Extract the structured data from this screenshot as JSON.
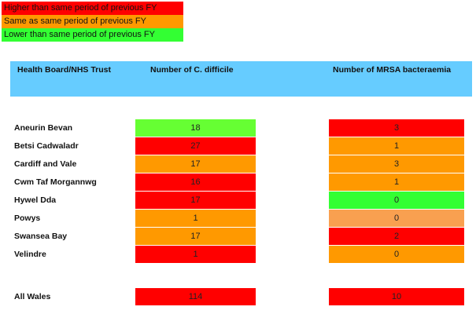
{
  "legend": [
    {
      "label": "Higher than same period of previous FY",
      "color": "#ff0000"
    },
    {
      "label": "Same as same period of previous FY",
      "color": "#ff9900"
    },
    {
      "label": "Lower than same period of previous FY",
      "color": "#33ff33"
    }
  ],
  "table": {
    "headers": [
      "Health Board/NHS Trust",
      "Number of C. difficile",
      "Number of MRSA bacteraemia"
    ],
    "rows": [
      {
        "name": "Aneurin Bevan",
        "cdiff": {
          "value": 18,
          "color": "#66ff33"
        },
        "mrsa": {
          "value": 3,
          "color": "#ff0000"
        }
      },
      {
        "name": "Betsi Cadwaladr",
        "cdiff": {
          "value": 27,
          "color": "#ff0000"
        },
        "mrsa": {
          "value": 1,
          "color": "#ff9900"
        }
      },
      {
        "name": "Cardiff and Vale",
        "cdiff": {
          "value": 17,
          "color": "#ff9900"
        },
        "mrsa": {
          "value": 3,
          "color": "#ff9900"
        }
      },
      {
        "name": "Cwm Taf Morgannwg",
        "cdiff": {
          "value": 16,
          "color": "#ff0000"
        },
        "mrsa": {
          "value": 1,
          "color": "#ff9900"
        }
      },
      {
        "name": "Hywel Dda",
        "cdiff": {
          "value": 17,
          "color": "#ff0000"
        },
        "mrsa": {
          "value": 0,
          "color": "#33ff33"
        }
      },
      {
        "name": "Powys",
        "cdiff": {
          "value": 1,
          "color": "#ff9900"
        },
        "mrsa": {
          "value": 0,
          "color": "#f9a050"
        }
      },
      {
        "name": "Swansea Bay",
        "cdiff": {
          "value": 17,
          "color": "#ff9900"
        },
        "mrsa": {
          "value": 2,
          "color": "#ff0000"
        }
      },
      {
        "name": "Velindre",
        "cdiff": {
          "value": 1,
          "color": "#ff0000"
        },
        "mrsa": {
          "value": 0,
          "color": "#ff9900"
        }
      }
    ],
    "total": {
      "name": "All Wales",
      "cdiff": {
        "value": 114,
        "color": "#ff0000"
      },
      "mrsa": {
        "value": 10,
        "color": "#ff0000"
      }
    }
  }
}
